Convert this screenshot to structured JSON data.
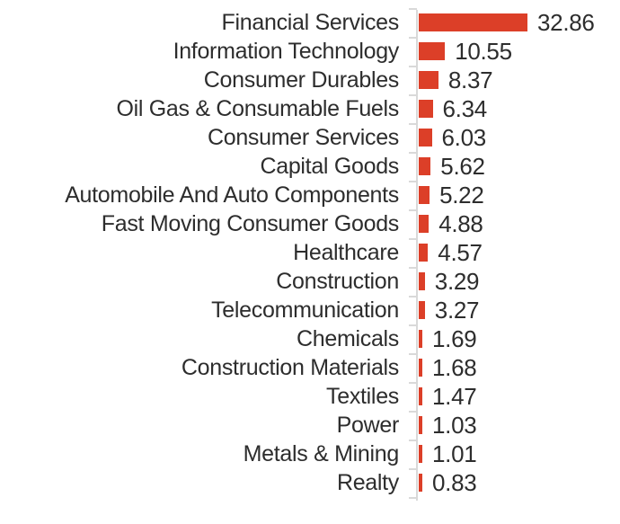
{
  "chart_data": {
    "type": "bar",
    "orientation": "horizontal",
    "title": "",
    "xlabel": "",
    "ylabel": "",
    "grid": false,
    "legend": "none",
    "value_labels_position": "end-of-bar",
    "categories": [
      "Financial Services",
      "Information Technology",
      "Consumer Durables",
      "Oil Gas & Consumable Fuels",
      "Consumer Services",
      "Capital Goods",
      "Automobile And Auto Components",
      "Fast Moving Consumer Goods",
      "Healthcare",
      "Construction",
      "Telecommunication",
      "Chemicals",
      "Construction Materials",
      "Textiles",
      "Power",
      "Metals & Mining",
      "Realty"
    ],
    "values": [
      32.86,
      10.55,
      8.37,
      6.34,
      6.03,
      5.62,
      5.22,
      4.88,
      4.57,
      3.29,
      3.27,
      1.69,
      1.68,
      1.47,
      1.03,
      1.01,
      0.83
    ],
    "value_labels": [
      "32.86",
      "10.55",
      "8.37",
      "6.34",
      "6.03",
      "5.62",
      "5.22",
      "4.88",
      "4.57",
      "3.29",
      "3.27",
      "1.69",
      "1.68",
      "1.47",
      "1.03",
      "1.01",
      "0.83"
    ],
    "colors": {
      "bar": "#dc3f28",
      "axis": "#d9d9d9",
      "text": "#2d2d2d"
    }
  }
}
